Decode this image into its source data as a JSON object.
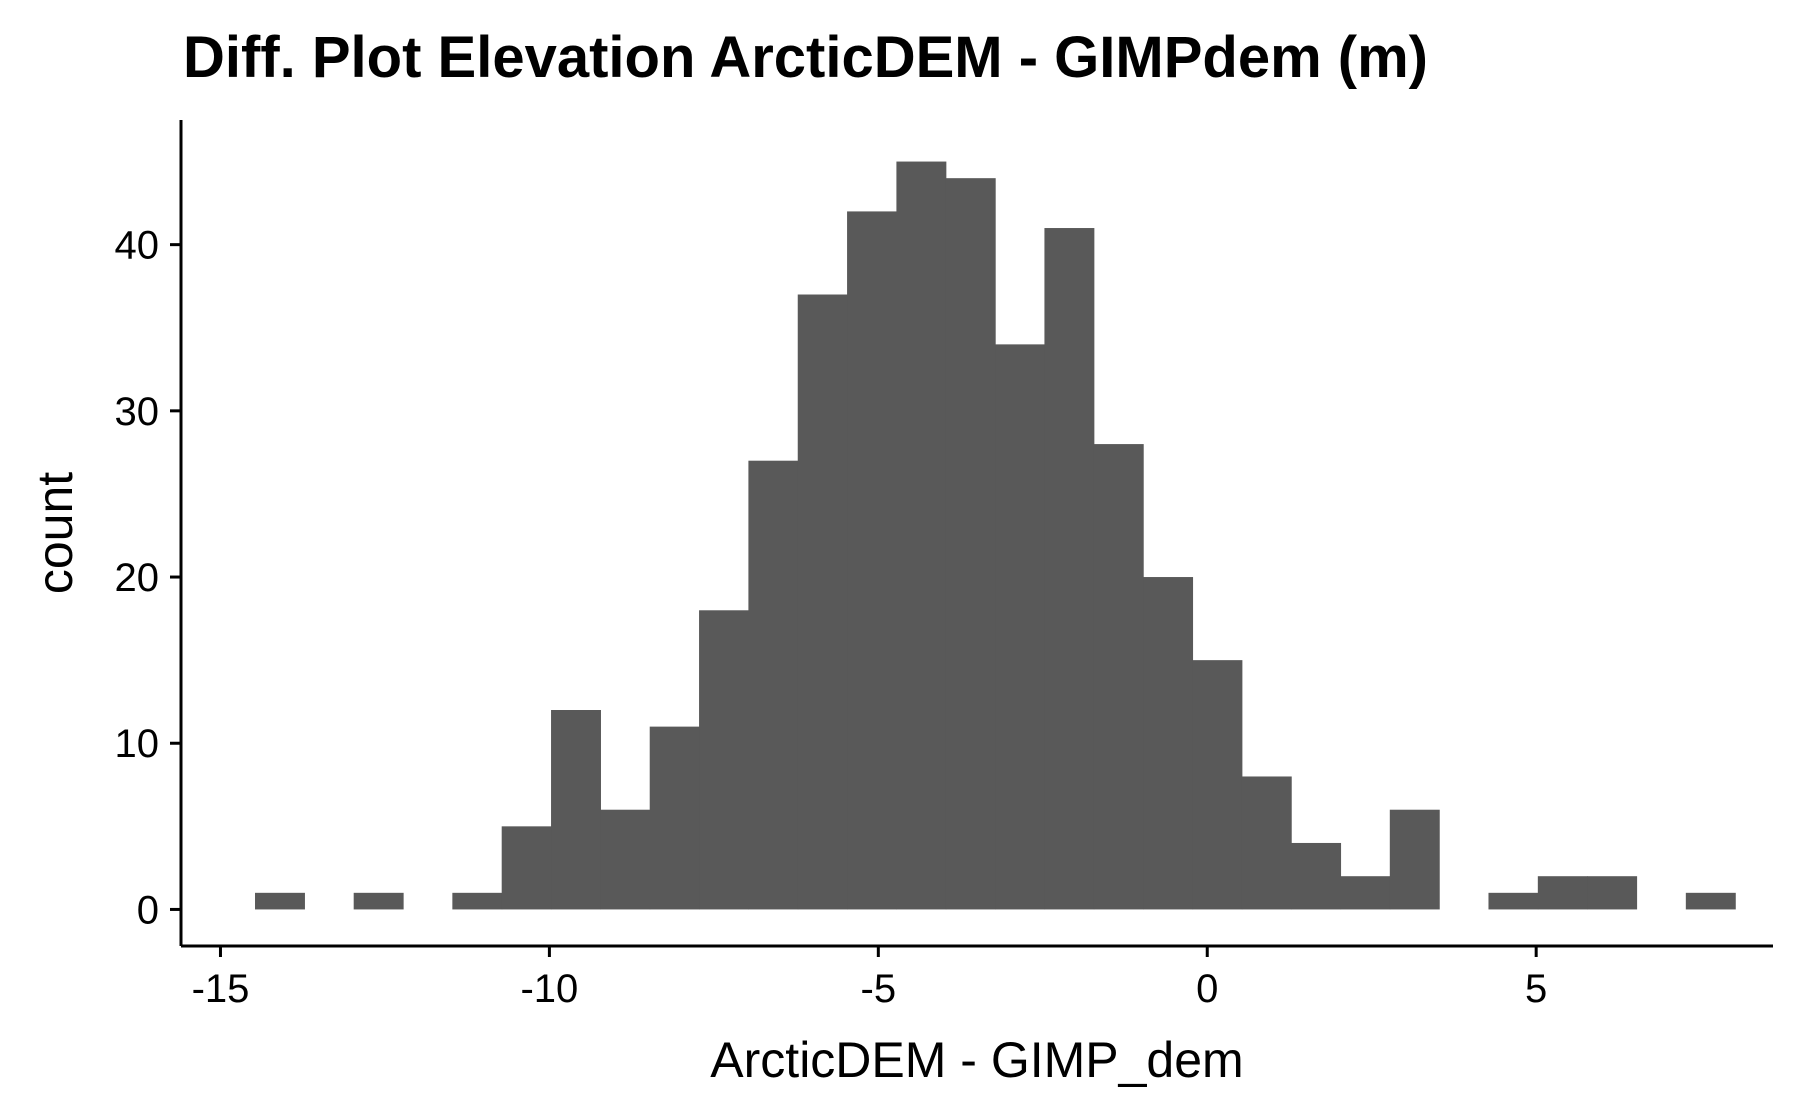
{
  "chart_data": {
    "type": "bar",
    "title": "Diff. Plot Elevation ArcticDEM - GIMPdem (m)",
    "xlabel": "ArcticDEM - GIMP_dem",
    "ylabel": "count",
    "xlim": [
      -15.6,
      8.6
    ],
    "ylim": [
      -2.2,
      47.5
    ],
    "bin_width": 0.75,
    "bins": [
      {
        "x": -14.1,
        "count": 1
      },
      {
        "x": -13.35,
        "count": 0
      },
      {
        "x": -12.6,
        "count": 1
      },
      {
        "x": -11.85,
        "count": 0
      },
      {
        "x": -11.1,
        "count": 1
      },
      {
        "x": -10.35,
        "count": 5
      },
      {
        "x": -9.6,
        "count": 12
      },
      {
        "x": -8.85,
        "count": 6
      },
      {
        "x": -8.1,
        "count": 11
      },
      {
        "x": -7.35,
        "count": 18
      },
      {
        "x": -6.6,
        "count": 27
      },
      {
        "x": -5.85,
        "count": 37
      },
      {
        "x": -5.1,
        "count": 42
      },
      {
        "x": -4.35,
        "count": 45
      },
      {
        "x": -3.6,
        "count": 44
      },
      {
        "x": -2.85,
        "count": 34
      },
      {
        "x": -2.1,
        "count": 41
      },
      {
        "x": -1.35,
        "count": 28
      },
      {
        "x": -0.6,
        "count": 20
      },
      {
        "x": 0.15,
        "count": 15
      },
      {
        "x": 0.9,
        "count": 8
      },
      {
        "x": 1.65,
        "count": 4
      },
      {
        "x": 2.4,
        "count": 2
      },
      {
        "x": 3.15,
        "count": 6
      },
      {
        "x": 3.9,
        "count": 0
      },
      {
        "x": 4.65,
        "count": 1
      },
      {
        "x": 5.4,
        "count": 2
      },
      {
        "x": 6.15,
        "count": 2
      },
      {
        "x": 6.9,
        "count": 0
      },
      {
        "x": 7.65,
        "count": 1
      }
    ],
    "x_ticks": [
      -15,
      -10,
      -5,
      0,
      5
    ],
    "x_tick_labels": [
      "-15",
      "-10",
      "-5",
      "0",
      "5"
    ],
    "y_ticks": [
      0,
      10,
      20,
      30,
      40
    ],
    "y_tick_labels": [
      "0",
      "10",
      "20",
      "30",
      "40"
    ],
    "bar_color": "#595959",
    "grid": false,
    "legend": "none"
  }
}
